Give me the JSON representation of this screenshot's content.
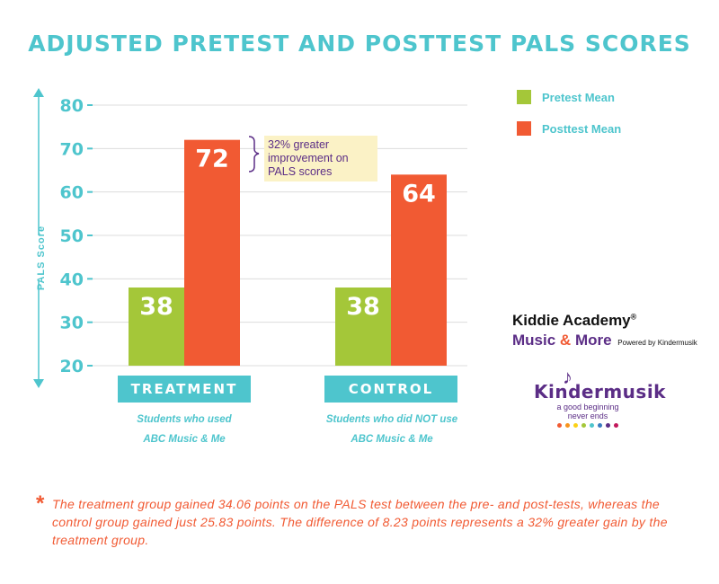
{
  "title": "ADJUSTED PRETEST AND POSTTEST PALS SCORES",
  "chart_data": {
    "type": "bar",
    "categories": [
      "TREATMENT",
      "CONTROL"
    ],
    "category_descriptions": [
      [
        "Students who used",
        "ABC Music & Me"
      ],
      [
        "Students who did NOT use",
        "ABC Music & Me"
      ]
    ],
    "series": [
      {
        "name": "Pretest Mean",
        "values": [
          38,
          38
        ],
        "color": "#a4c739"
      },
      {
        "name": "Posttest Mean",
        "values": [
          72,
          64
        ],
        "color": "#f15a33"
      }
    ],
    "ylabel": "PALS Score",
    "ylim": [
      20,
      80
    ],
    "yticks": [
      20,
      30,
      40,
      50,
      60,
      70,
      80
    ],
    "grid": true,
    "legend": "top-right",
    "annotation": "32% greater improvement on PALS scores"
  },
  "footnote": "The treatment group gained 34.06 points on the PALS test between the pre- and post-tests, whereas the control group gained just 25.83 points. The difference of 8.23 points represents a 32% greater gain by the treatment group.",
  "branding": {
    "kiddie_academy": "Kiddie Academy",
    "music": "Music",
    "amp": "&",
    "more": "More",
    "powered_by": "Powered by Kindermusik",
    "kindermusik": "Kindermusik",
    "kindermusik_tagline_1": "a good beginning",
    "kindermusik_tagline_2": "never ends"
  }
}
